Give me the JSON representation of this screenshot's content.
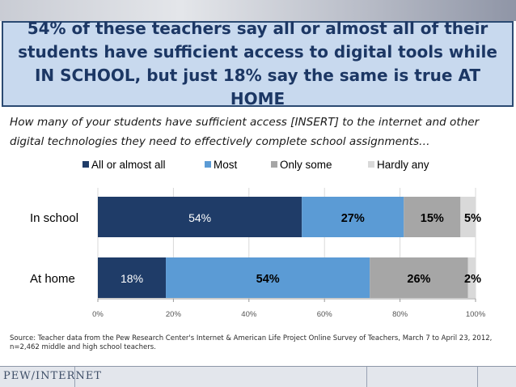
{
  "headline": "54% of these teachers say all or almost all of their students have sufficient access to digital tools while IN SCHOOL, but just 18% say the same is true AT HOME",
  "question": "How many of your students have sufficient access [INSERT] to the internet and other digital technologies they need to effectively complete school assignments…",
  "source": "Source: Teacher data from the Pew Research Center's Internet & American Life Project Online Survey of Teachers, March 7 to April 23, 2012, n=2,462 middle and high school teachers.",
  "logo": "PEW/INTERNET",
  "colors": {
    "title_bg": "#c8d9ee",
    "title_border": "#2b4a72",
    "title_text": "#1c3764"
  },
  "chart_data": {
    "type": "bar",
    "orientation": "horizontal",
    "stacked": true,
    "categories": [
      "In school",
      "At home"
    ],
    "series": [
      {
        "name": "All or almost all",
        "color": "#1f3c68",
        "values": [
          54,
          18
        ],
        "labels": [
          "54%",
          "18%"
        ]
      },
      {
        "name": "Most",
        "color": "#5b9bd5",
        "values": [
          27,
          54
        ],
        "labels": [
          "27%",
          "54%"
        ]
      },
      {
        "name": "Only some",
        "color": "#a6a6a6",
        "values": [
          15,
          26
        ],
        "labels": [
          "15%",
          "26%"
        ]
      },
      {
        "name": "Hardly any",
        "color": "#d9d9d9",
        "values": [
          5,
          2
        ],
        "labels": [
          "5%",
          "2%"
        ]
      }
    ],
    "xlim": [
      0,
      100
    ],
    "ticks": [
      "0%",
      "20%",
      "40%",
      "60%",
      "80%",
      "100%"
    ],
    "grid": true,
    "legend_position": "top"
  }
}
